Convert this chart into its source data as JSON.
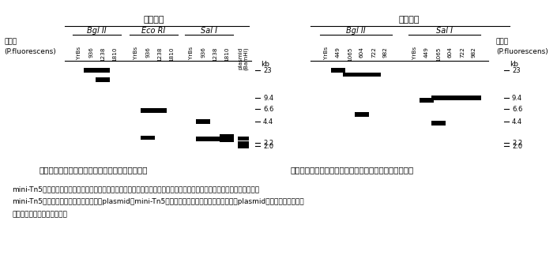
{
  "fig_width": 7.05,
  "fig_height": 3.37,
  "bg_color": "#ffffff",
  "title_seigen": "制限酵素",
  "enzyme1_labels": [
    "Bgl II",
    "Eco RI",
    "Sal I"
  ],
  "enzyme2_labels": [
    "Bgl II",
    "Sal I"
  ],
  "lane_names1_bgl": [
    "YrBs",
    "936",
    "1238",
    "1810"
  ],
  "lane_names1_eco": [
    "YrBs",
    "936",
    "1238",
    "1810"
  ],
  "lane_names1_sal": [
    "YrBs",
    "936",
    "1238",
    "1810"
  ],
  "lane_names1_plas": [
    "plasmid (BamHI)"
  ],
  "lane_names2_bgl": [
    "YrBs",
    "449",
    "1065",
    "604",
    "722",
    "982"
  ],
  "lane_names2_sal": [
    "YrBs",
    "449",
    "1065",
    "604",
    "722",
    "982"
  ],
  "left_label": "菌株名\n(P.fluorescens)",
  "right_label": "菌株名\n(P.fluorescens)",
  "kb_labels": [
    "23",
    "9.4",
    "6.6",
    "4.4",
    "2.2",
    "2.0"
  ],
  "kb_values": [
    23,
    9.4,
    6.6,
    4.4,
    2.2,
    2.0
  ],
  "caption1": "図１　ピロールニトリン非生産株のオートグラム",
  "caption2": "図２　蛍光物質、シアン化合物非生産株のオートグラム",
  "footnote_lines": [
    "mini-Tn5をプローブとして検出した。親株ではバンドが検出されないが、変異株ではそれぞれに１本のバンドが確認され、",
    "mini-Tn5が挿入されていることを示す。plasmidはmini-Tn5を含んでいるので対照として用いた（plasmidの存在形態により、",
    "３本のバンドが見られる）。"
  ]
}
